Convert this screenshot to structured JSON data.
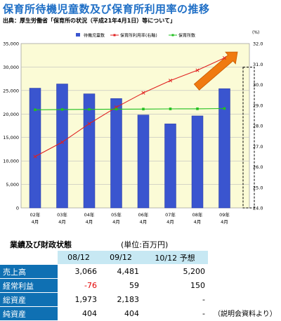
{
  "title": "保育所待機児童数及び保育所利用率の推移",
  "source": "出典：厚生労働省「保育所の状況（平成21年4月1日）等について」",
  "chart_data": {
    "type": "bar",
    "categories": [
      "02年\n4月",
      "03年\n4月",
      "04年\n4月",
      "05年\n4月",
      "06年\n4月",
      "07年\n4月",
      "08年\n4月",
      "09年\n4月"
    ],
    "y_left": {
      "min": 0,
      "max": 35000,
      "step": 5000,
      "ticks": [
        "0",
        "5,000",
        "10,000",
        "15,000",
        "20,000",
        "25,000",
        "30,000",
        "35,000"
      ]
    },
    "y_right": {
      "min": 24.0,
      "max": 32.0,
      "step": 1.0,
      "unit": "(%)",
      "ticks": [
        "24.0",
        "25.0",
        "26.0",
        "27.0",
        "28.0",
        "29.0",
        "30.0",
        "31.0",
        "32.0"
      ]
    },
    "series": [
      {
        "name": "待機児童数",
        "kind": "bar",
        "axis": "left",
        "color": "#3a55cf",
        "values": [
          25500,
          26400,
          24300,
          23300,
          19800,
          17900,
          19600,
          25400
        ]
      },
      {
        "name": "保育所利用率(右軸)",
        "kind": "line",
        "axis": "right",
        "color": "#e02020",
        "values": [
          26.5,
          27.2,
          28.1,
          28.9,
          29.6,
          30.2,
          30.7,
          31.3
        ]
      },
      {
        "name": "保育所数",
        "kind": "line",
        "axis": "left",
        "color": "#22c020",
        "values": [
          20900,
          20960,
          20990,
          21030,
          21050,
          21090,
          21110,
          21170
        ]
      }
    ],
    "legend_position": "top",
    "annotations": {
      "arrow_color": "#f07a10",
      "dashed_box_color": "#000000",
      "plot_bg": "#fbfbd6"
    }
  },
  "financials": {
    "title": "業績及び財政状態",
    "unit": "(単位:百万円)",
    "columns": [
      "08/12",
      "09/12",
      "10/12  予想"
    ],
    "rows": [
      {
        "label": "売上高",
        "values": [
          "3,066",
          "4,481",
          "5,200"
        ]
      },
      {
        "label": "経常利益",
        "values": [
          "-76",
          "59",
          "150"
        ]
      },
      {
        "label": "総資産",
        "values": [
          "1,973",
          "2,183",
          "-"
        ]
      },
      {
        "label": "純資産",
        "values": [
          "404",
          "404",
          "-"
        ]
      }
    ],
    "note": "（説明会資料より）"
  }
}
